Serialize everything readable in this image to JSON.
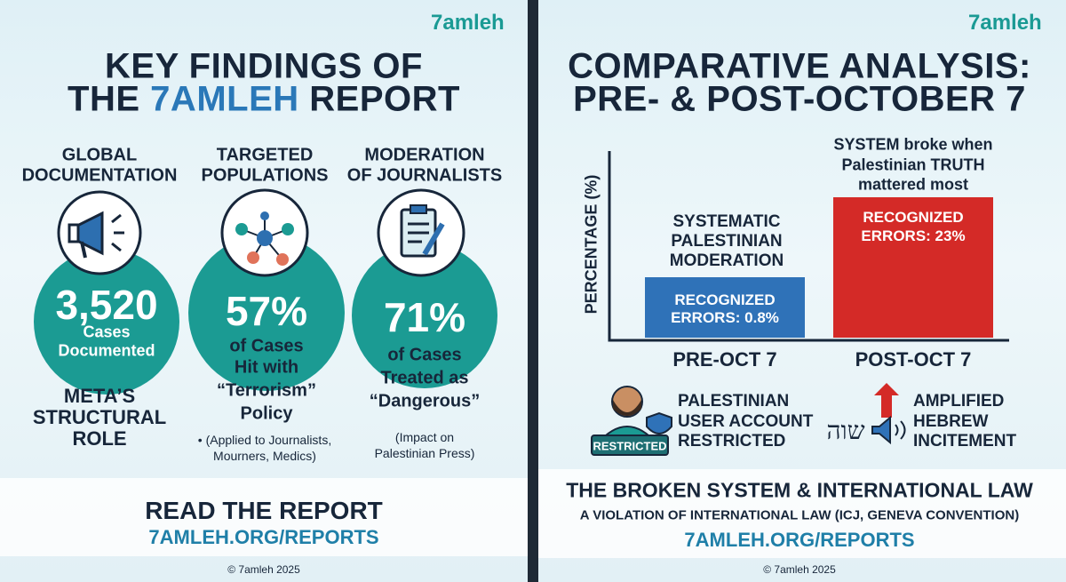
{
  "left": {
    "brand": "7amleh",
    "title": {
      "line1": "KEY FINDINGS OF",
      "line2_pre": "THE",
      "line2_highlight": "7AMLEH",
      "line2_post": "REPORT"
    },
    "columns": [
      {
        "heading": [
          "GLOBAL",
          "DOCUMENTATION"
        ],
        "stat": "3,520",
        "caption": [
          "Cases",
          "Documented"
        ],
        "note": [
          "META’S",
          "STRUCTURAL",
          "ROLE"
        ]
      },
      {
        "heading": [
          "TARGETED",
          "POPULATIONS"
        ],
        "stat": "57%",
        "caption": [
          "of Cases",
          "Hit with",
          "“Terrorism”",
          "Policy"
        ],
        "note": [
          "• (Applied to Journalists,",
          "Mourners, Medics)"
        ]
      },
      {
        "heading": [
          "MODERATION",
          "OF JOURNALISTS"
        ],
        "stat": "71%",
        "caption": [
          "of Cases",
          "Treated as",
          "“Dangerous”"
        ],
        "note": [
          "(Impact on",
          "Palestinian Press)"
        ]
      }
    ],
    "cta": "READ THE REPORT",
    "link": "7AMLEH.ORG/REPORTS",
    "copyright": "© 7amleh 2025"
  },
  "right": {
    "brand": "7amleh",
    "title": [
      "COMPARATIVE ANALYSIS:",
      "PRE- & POST-OCTOBER 7"
    ],
    "axis_label": "PERCENTAGE (%)",
    "annotation": [
      "SYSTEM broke when",
      "Palestinian TRUTH",
      "mattered most"
    ],
    "bars": [
      {
        "category": "PRE-OCT 7",
        "label": [
          "SYSTEMATIC",
          "PALESTINIAN",
          "MODERATION"
        ],
        "text": [
          "RECOGNIZED",
          "ERRORS: 0.8%"
        ]
      },
      {
        "category": "POST-OCT 7",
        "text": [
          "RECOGNIZED",
          "ERRORS: 23%"
        ]
      }
    ],
    "icons": [
      {
        "badge": "RESTRICTED",
        "text": [
          "PALESTINIAN",
          "USER ACCOUNT",
          "RESTRICTED"
        ]
      },
      {
        "glyph": "שוה",
        "text": [
          "AMPLIFIED",
          "HEBREW",
          "INCITEMENT"
        ]
      }
    ],
    "footer": {
      "title": "THE BROKEN SYSTEM & INTERNATIONAL LAW",
      "subtitle": "A VIOLATION OF INTERNATIONAL LAW (ICJ, GENEVA CONVENTION)",
      "link": "7AMLEH.ORG/REPORTS"
    },
    "copyright": "© 7amleh 2025"
  }
}
